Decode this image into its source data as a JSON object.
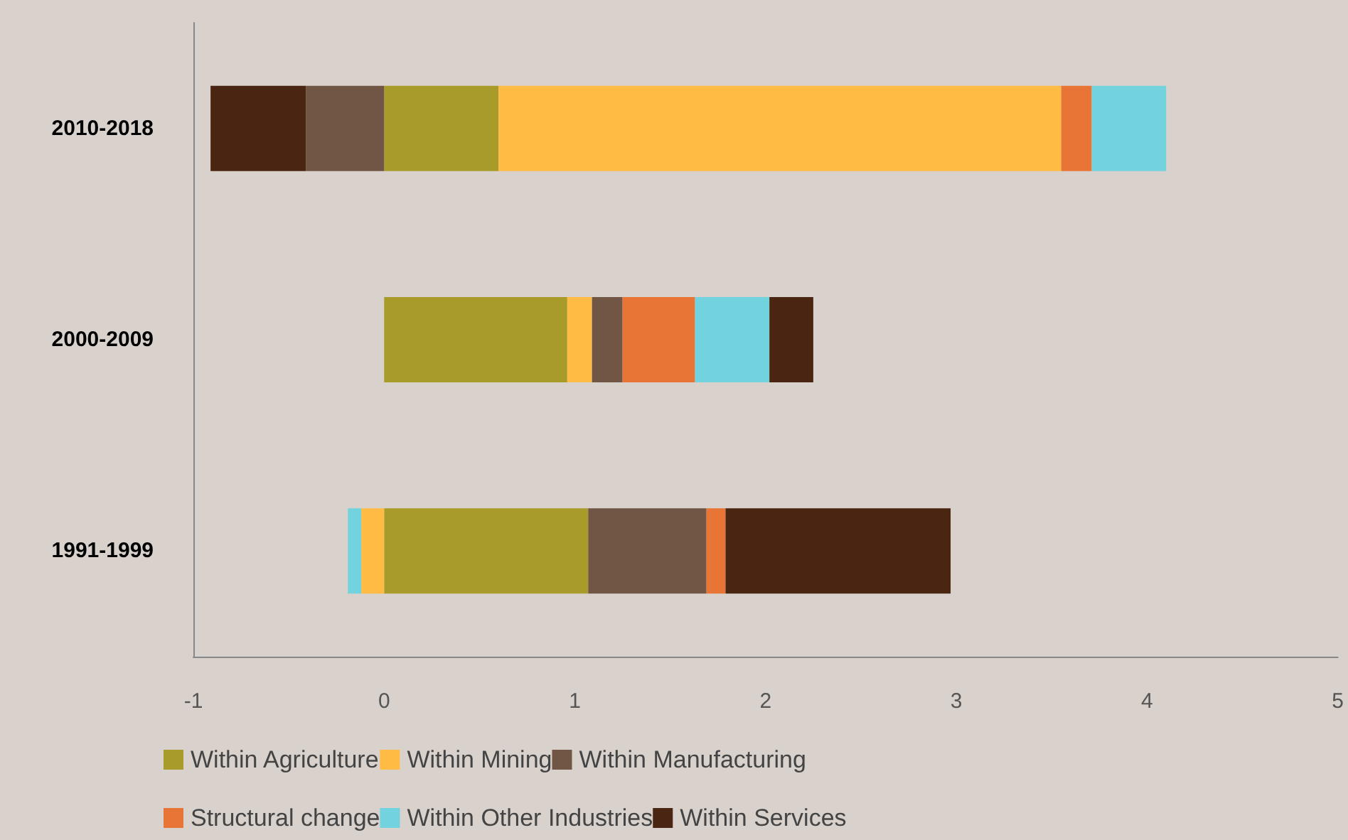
{
  "chart_data": {
    "type": "bar",
    "orientation": "horizontal",
    "stacked": true,
    "categories": [
      "2010-2018",
      "2000-2009",
      "1991-1999"
    ],
    "series": [
      {
        "name": "Within Agriculture",
        "color": "#a89b2a",
        "values": [
          0.6,
          0.96,
          1.07
        ]
      },
      {
        "name": "Within Mining",
        "color": "#ffbb44",
        "values": [
          2.95,
          0.13,
          -0.12
        ]
      },
      {
        "name": "Within Manufacturing",
        "color": "#725645",
        "values": [
          -0.41,
          0.16,
          0.62
        ]
      },
      {
        "name": "Structural change",
        "color": "#e87435",
        "values": [
          0.16,
          0.38,
          0.1
        ]
      },
      {
        "name": "Within Other Industries",
        "color": "#72d3de",
        "values": [
          0.39,
          0.39,
          -0.07
        ]
      },
      {
        "name": "Within Services",
        "color": "#4a2511",
        "values": [
          -0.5,
          0.23,
          1.18
        ]
      }
    ],
    "xlim": [
      -1,
      5
    ],
    "xticks": [
      -1,
      0,
      1,
      2,
      3,
      4,
      5
    ],
    "grid": false,
    "legend": "bottom"
  }
}
